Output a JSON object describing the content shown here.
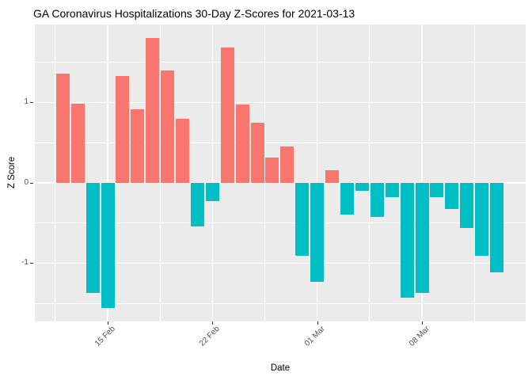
{
  "chart_data": {
    "type": "bar",
    "title": "GA Coronavirus Hospitalizations 30-Day Z-Scores for 2021-03-13",
    "xlabel": "Date",
    "ylabel": "Z Score",
    "x": [
      "2021-02-12",
      "2021-02-13",
      "2021-02-14",
      "2021-02-15",
      "2021-02-16",
      "2021-02-17",
      "2021-02-18",
      "2021-02-19",
      "2021-02-20",
      "2021-02-21",
      "2021-02-22",
      "2021-02-23",
      "2021-02-24",
      "2021-02-25",
      "2021-02-26",
      "2021-02-27",
      "2021-02-28",
      "2021-03-01",
      "2021-03-02",
      "2021-03-03",
      "2021-03-04",
      "2021-03-05",
      "2021-03-06",
      "2021-03-07",
      "2021-03-08",
      "2021-03-09",
      "2021-03-10",
      "2021-03-11",
      "2021-03-12",
      "2021-03-13"
    ],
    "values": [
      1.36,
      0.98,
      -1.37,
      -1.56,
      1.33,
      0.92,
      1.8,
      1.4,
      0.8,
      -0.54,
      -0.23,
      1.68,
      0.97,
      0.75,
      0.31,
      0.45,
      -0.91,
      -1.23,
      0.16,
      -0.39,
      -0.1,
      -0.42,
      -0.18,
      -1.43,
      -1.37,
      -0.18,
      -0.33,
      -0.56,
      -0.91,
      -1.11
    ],
    "positive_color": "#F8766D",
    "negative_color": "#00BFC4",
    "panel_bg": "#EBEBEB",
    "grid_color": "#FFFFFF",
    "tick_label_color": "#4D4D4D",
    "x_ticks": [
      {
        "label": "15 Feb",
        "day_index": 3
      },
      {
        "label": "22 Feb",
        "day_index": 10
      },
      {
        "label": "01 Mar",
        "day_index": 17
      },
      {
        "label": "08 Mar",
        "day_index": 24
      }
    ],
    "x_minor_day_indices": [
      -0.5,
      6.5,
      13.5,
      20.5,
      27.5
    ],
    "y_ticks": [
      1,
      0,
      -1
    ],
    "y_minor_ticks": [
      1.5,
      0.5,
      -0.5,
      -1.5
    ],
    "ylim": [
      -1.725,
      1.97
    ],
    "grid": true,
    "legend_position": "none"
  }
}
